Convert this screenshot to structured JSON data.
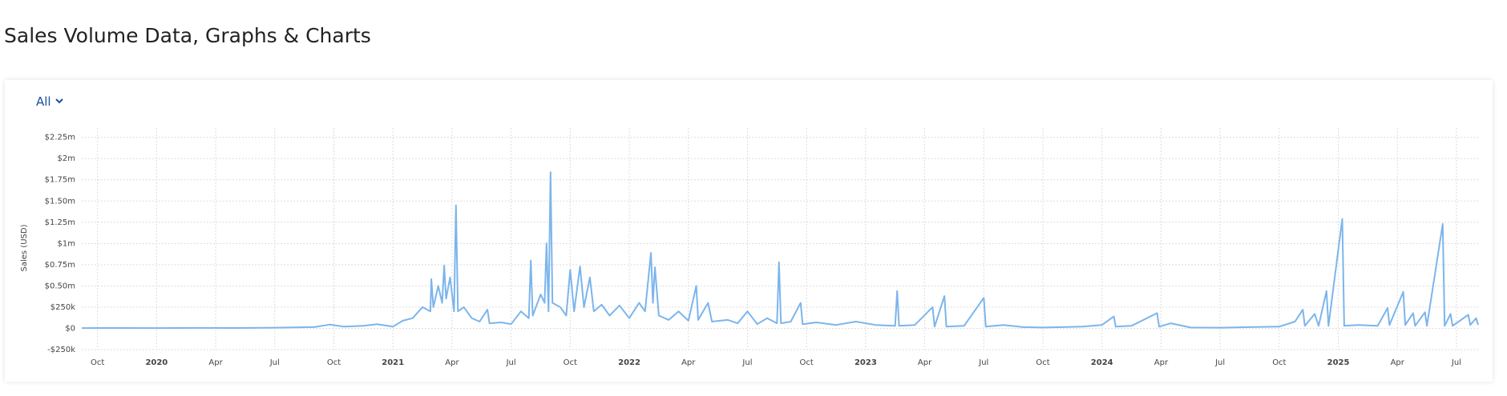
{
  "filter": "All",
  "chart_data": {
    "type": "line",
    "title": "Sales Volume Data, Graphs & Charts",
    "y_label": "Sales (USD)",
    "color": "#7cb5ec",
    "grid": true,
    "xlim": [
      -3.8,
      67.1
    ],
    "xticks": [
      {
        "value": -3,
        "label": "Oct"
      },
      {
        "value": 0,
        "label": "2020"
      },
      {
        "value": 3,
        "label": "Apr"
      },
      {
        "value": 6,
        "label": "Jul"
      },
      {
        "value": 9,
        "label": "Oct"
      },
      {
        "value": 12,
        "label": "2021"
      },
      {
        "value": 15,
        "label": "Apr"
      },
      {
        "value": 18,
        "label": "Jul"
      },
      {
        "value": 21,
        "label": "Oct"
      },
      {
        "value": 24,
        "label": "2022"
      },
      {
        "value": 27,
        "label": "Apr"
      },
      {
        "value": 30,
        "label": "Jul"
      },
      {
        "value": 33,
        "label": "Oct"
      },
      {
        "value": 36,
        "label": "2023"
      },
      {
        "value": 39,
        "label": "Apr"
      },
      {
        "value": 42,
        "label": "Jul"
      },
      {
        "value": 45,
        "label": "Oct"
      },
      {
        "value": 48,
        "label": "2024"
      },
      {
        "value": 51,
        "label": "Apr"
      },
      {
        "value": 54,
        "label": "Jul"
      },
      {
        "value": 57,
        "label": "Oct"
      },
      {
        "value": 60,
        "label": "2025"
      },
      {
        "value": 63,
        "label": "Apr"
      },
      {
        "value": 66,
        "label": "Jul"
      }
    ],
    "ylim": [
      -250000,
      2360000
    ],
    "yticks": [
      {
        "value": -250000,
        "label": "-$250k"
      },
      {
        "value": 0,
        "label": "$0"
      },
      {
        "value": 250000,
        "label": "$250k"
      },
      {
        "value": 500000,
        "label": "$0.50m"
      },
      {
        "value": 750000,
        "label": "$0.75m"
      },
      {
        "value": 1000000,
        "label": "$1m"
      },
      {
        "value": 1250000,
        "label": "$1.25m"
      },
      {
        "value": 1500000,
        "label": "$1.50m"
      },
      {
        "value": 1750000,
        "label": "$1.75m"
      },
      {
        "value": 2000000,
        "label": "$2m"
      },
      {
        "value": 2250000,
        "label": "$2.25m"
      }
    ],
    "x": [
      -3.8,
      -2,
      0,
      2,
      4,
      6,
      7,
      8,
      8.8,
      9.5,
      10.5,
      11.2,
      12,
      12.5,
      13,
      13.5,
      13.9,
      13.95,
      14.05,
      14.3,
      14.5,
      14.6,
      14.7,
      14.9,
      15.1,
      15.2,
      15.3,
      15.6,
      16,
      16.4,
      16.8,
      16.9,
      17.5,
      18,
      18.5,
      18.9,
      19,
      19.1,
      19.5,
      19.7,
      19.8,
      19.9,
      20,
      20.1,
      20.5,
      20.8,
      21,
      21.2,
      21.5,
      21.7,
      22,
      22.2,
      22.6,
      23,
      23.5,
      24,
      24.5,
      24.8,
      25.1,
      25.2,
      25.3,
      25.5,
      26,
      26.5,
      27,
      27.4,
      27.5,
      28,
      28.2,
      29,
      29.5,
      30,
      30.5,
      31,
      31.5,
      31.6,
      31.7,
      32.2,
      32.7,
      32.8,
      33.5,
      34.5,
      35.5,
      36.5,
      37.5,
      37.6,
      37.7,
      38.5,
      39.4,
      39.5,
      40,
      40.1,
      41,
      42,
      42.1,
      43,
      44,
      45,
      46,
      47,
      48,
      48.6,
      48.7,
      49.5,
      50.8,
      50.9,
      51.5,
      52.5,
      54,
      55.5,
      57,
      57.8,
      58.2,
      58.3,
      58.8,
      59,
      59.4,
      59.5,
      60.2,
      60.3,
      61,
      62,
      62.5,
      62.6,
      63.3,
      63.4,
      63.8,
      63.9,
      64.4,
      64.5,
      65.3,
      65.4,
      65.7,
      65.8,
      66.6,
      66.7,
      67,
      67.1
    ],
    "values": [
      3000,
      4000,
      3000,
      5000,
      4000,
      8000,
      12000,
      15000,
      45000,
      20000,
      30000,
      50000,
      20000,
      90000,
      120000,
      250000,
      200000,
      580000,
      250000,
      500000,
      300000,
      740000,
      350000,
      600000,
      200000,
      1450000,
      200000,
      250000,
      120000,
      80000,
      220000,
      60000,
      70000,
      50000,
      200000,
      120000,
      800000,
      150000,
      400000,
      300000,
      1000000,
      200000,
      1840000,
      300000,
      250000,
      150000,
      690000,
      200000,
      730000,
      250000,
      600000,
      200000,
      280000,
      150000,
      270000,
      120000,
      300000,
      200000,
      890000,
      300000,
      720000,
      150000,
      100000,
      200000,
      90000,
      500000,
      100000,
      300000,
      80000,
      100000,
      60000,
      200000,
      50000,
      120000,
      60000,
      780000,
      60000,
      80000,
      300000,
      50000,
      70000,
      40000,
      80000,
      40000,
      30000,
      440000,
      30000,
      40000,
      250000,
      20000,
      380000,
      20000,
      30000,
      360000,
      20000,
      40000,
      15000,
      10000,
      15000,
      20000,
      40000,
      140000,
      20000,
      30000,
      180000,
      20000,
      60000,
      10000,
      8000,
      15000,
      20000,
      80000,
      220000,
      30000,
      170000,
      30000,
      440000,
      30000,
      1290000,
      30000,
      40000,
      30000,
      240000,
      40000,
      430000,
      40000,
      180000,
      30000,
      190000,
      30000,
      1230000,
      30000,
      170000,
      30000,
      160000,
      40000,
      120000,
      40000
    ]
  }
}
